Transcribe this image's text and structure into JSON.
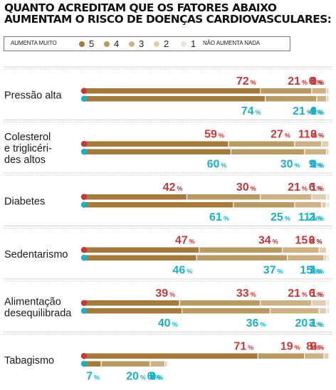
{
  "chart_data": {
    "type": "bar",
    "title_lines": [
      "QUANTO ACREDITAM QUE OS FATORES ABAIXO",
      "AUMENTAM O RISCO DE DOENÇAS CARDIOVASCULARES:"
    ],
    "legend": {
      "left_label": "AUMENTA MUITO",
      "right_label": "NÃO AUMENTA NADA",
      "levels": [
        "5",
        "4",
        "3",
        "2",
        "1"
      ]
    },
    "level_colors": [
      "#a57a3a",
      "#b99a62",
      "#ccb286",
      "#dfceb1",
      "#ece4d6"
    ],
    "marker_colors": {
      "top": "#c43a3a",
      "bottom": "#1bb0c8"
    },
    "unit": "%",
    "categories": [
      {
        "label": [
          "Pressão alta"
        ],
        "top": [
          72,
          21,
          6,
          1,
          0
        ],
        "bottom": [
          74,
          21,
          4,
          1,
          0
        ]
      },
      {
        "label": [
          "Colesterol",
          "e triglicéri-",
          "des altos"
        ],
        "top": [
          59,
          27,
          11,
          3,
          0
        ],
        "bottom": [
          60,
          30,
          9,
          1,
          0
        ]
      },
      {
        "label": [
          "Diabetes"
        ],
        "top": [
          42,
          30,
          21,
          6,
          1
        ],
        "bottom": [
          61,
          25,
          11,
          2,
          1
        ]
      },
      {
        "label": [
          "Sedentarismo"
        ],
        "top": [
          47,
          34,
          15,
          3,
          0
        ],
        "bottom": [
          46,
          37,
          15,
          1,
          1
        ]
      },
      {
        "label": [
          "Alimentação",
          "desequilibrada"
        ],
        "top": [
          39,
          33,
          21,
          6,
          1
        ],
        "bottom": [
          40,
          36,
          20,
          3,
          1
        ]
      },
      {
        "label": [
          "Tabagismo"
        ],
        "top": [
          71,
          19,
          8,
          2,
          0
        ],
        "bottom": [
          7,
          20,
          6,
          1,
          0
        ]
      }
    ]
  }
}
